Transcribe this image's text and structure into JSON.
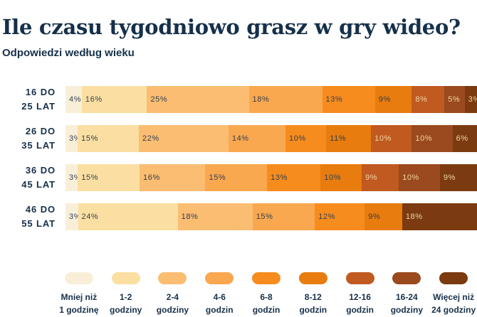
{
  "header": {
    "title": "Ile czasu tygodniowo grasz w gry wideo?",
    "subtitle": "Odpowiedzi według wieku"
  },
  "colors": {
    "background": "#FFFFFF",
    "heading_text": "#16304A",
    "percent_dark_text": "#333F4E",
    "percent_light_text": "#F2D7A2"
  },
  "chart_data": {
    "type": "bar",
    "variant": "horizontal-stacked-100pct",
    "unit": "%",
    "title": "Ile czasu tygodniowo grasz w gry wideo?",
    "subtitle": "Odpowiedzi według wieku",
    "legend_position": "bottom",
    "categories": [
      {
        "label_lines": [
          "Mniej niż",
          "1 godzinę"
        ],
        "color": "#F9EFD9",
        "text": "dark"
      },
      {
        "label_lines": [
          "1-2",
          "godziny"
        ],
        "color": "#FBDFA2",
        "text": "dark"
      },
      {
        "label_lines": [
          "2-4",
          "godziny"
        ],
        "color": "#FBBD72",
        "text": "dark"
      },
      {
        "label_lines": [
          "4-6",
          "godzin"
        ],
        "color": "#F9A850",
        "text": "dark"
      },
      {
        "label_lines": [
          "6-8",
          "godzin"
        ],
        "color": "#F78C1E",
        "text": "dark"
      },
      {
        "label_lines": [
          "8-12",
          "godzin"
        ],
        "color": "#E87C0E",
        "text": "dark"
      },
      {
        "label_lines": [
          "12-16",
          "godzin"
        ],
        "color": "#C05A20",
        "text": "light"
      },
      {
        "label_lines": [
          "16-24",
          "godziny"
        ],
        "color": "#9A4A1E",
        "text": "light"
      },
      {
        "label_lines": [
          "Więcej niż",
          "24 godziny"
        ],
        "color": "#7B3A0F",
        "text": "light"
      }
    ],
    "rows": [
      {
        "label_lines": [
          "16 DO",
          "25 LAT"
        ],
        "segments": [
          {
            "category": 0,
            "value": 4
          },
          {
            "category": 1,
            "value": 16
          },
          {
            "category": 2,
            "value": 25
          },
          {
            "category": 3,
            "value": 18
          },
          {
            "category": 4,
            "value": 13
          },
          {
            "category": 5,
            "value": 9
          },
          {
            "category": 6,
            "value": 8
          },
          {
            "category": 7,
            "value": 5
          },
          {
            "category": 8,
            "value": 3
          }
        ]
      },
      {
        "label_lines": [
          "26 DO",
          "35 LAT"
        ],
        "segments": [
          {
            "category": 0,
            "value": 3
          },
          {
            "category": 1,
            "value": 15
          },
          {
            "category": 2,
            "value": 22
          },
          {
            "category": 3,
            "value": 14
          },
          {
            "category": 4,
            "value": 10
          },
          {
            "category": 5,
            "value": 11
          },
          {
            "category": 6,
            "value": 10
          },
          {
            "category": 7,
            "value": 10
          },
          {
            "category": 8,
            "value": 6
          }
        ]
      },
      {
        "label_lines": [
          "36 DO",
          "45 LAT"
        ],
        "segments": [
          {
            "category": 0,
            "value": 3
          },
          {
            "category": 1,
            "value": 15
          },
          {
            "category": 2,
            "value": 16
          },
          {
            "category": 3,
            "value": 15
          },
          {
            "category": 4,
            "value": 13
          },
          {
            "category": 5,
            "value": 10
          },
          {
            "category": 6,
            "value": 9
          },
          {
            "category": 7,
            "value": 10
          },
          {
            "category": 8,
            "value": 9
          }
        ]
      },
      {
        "label_lines": [
          "46 DO",
          "55 LAT"
        ],
        "segments": [
          {
            "category": 0,
            "value": 3
          },
          {
            "category": 1,
            "value": 24
          },
          {
            "category": 2,
            "value": 18
          },
          {
            "category": 3,
            "value": 15
          },
          {
            "category": 4,
            "value": 12
          },
          {
            "category": 5,
            "value": 9
          },
          {
            "category": 8,
            "value": 18
          }
        ]
      }
    ]
  }
}
